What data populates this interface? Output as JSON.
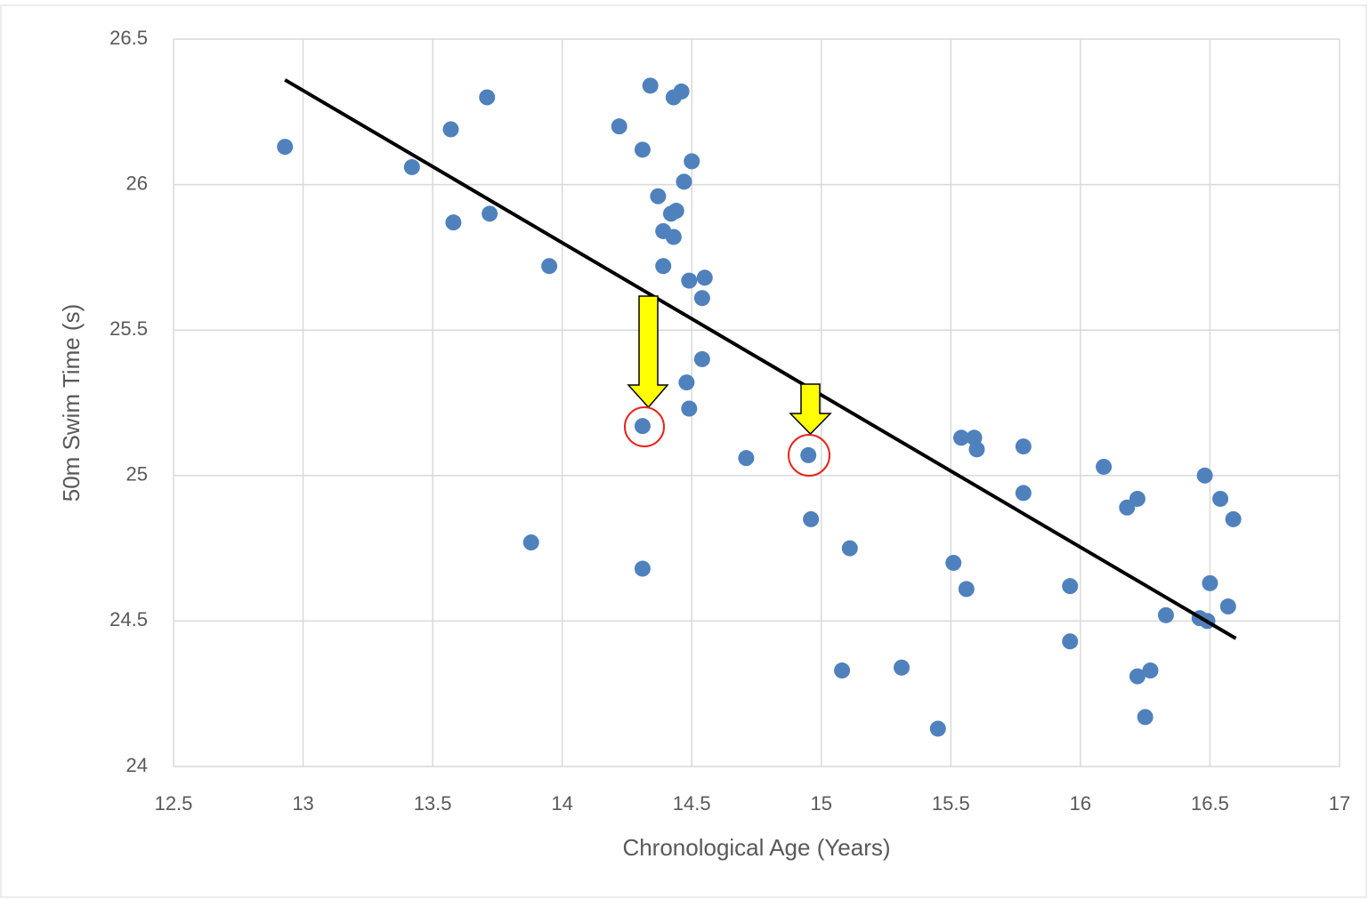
{
  "chart_data": {
    "type": "scatter",
    "x_label": "Chronological Age (Years)",
    "y_label": "50m Swim Time (s)",
    "color": "#4f81bd",
    "x": [
      12.93,
      13.42,
      13.57,
      13.58,
      13.71,
      13.72,
      13.95,
      13.88,
      14.22,
      14.34,
      14.43,
      14.46,
      14.31,
      14.5,
      14.47,
      14.37,
      14.42,
      14.44,
      14.39,
      14.43,
      14.39,
      14.49,
      14.55,
      14.54,
      14.54,
      14.48,
      14.49,
      14.31,
      14.31,
      14.71,
      14.95,
      14.96,
      15.11,
      15.08,
      15.31,
      15.45,
      15.51,
      15.56,
      15.54,
      15.59,
      15.6,
      15.78,
      15.78,
      15.96,
      15.96,
      16.09,
      16.18,
      16.22,
      16.22,
      16.27,
      16.25,
      16.33,
      16.46,
      16.49,
      16.48,
      16.54,
      16.59,
      16.5,
      16.57
    ],
    "values": [
      26.13,
      26.06,
      26.19,
      25.87,
      26.3,
      25.9,
      25.72,
      24.77,
      26.2,
      26.34,
      26.3,
      26.32,
      26.12,
      26.08,
      26.01,
      25.96,
      25.9,
      25.91,
      25.84,
      25.82,
      25.72,
      25.67,
      25.68,
      25.61,
      25.4,
      25.32,
      25.23,
      25.17,
      24.68,
      25.06,
      25.07,
      24.85,
      24.75,
      24.33,
      24.34,
      24.13,
      24.7,
      24.61,
      25.13,
      25.13,
      25.09,
      25.1,
      24.94,
      24.62,
      24.43,
      25.03,
      24.89,
      24.92,
      24.31,
      24.33,
      24.17,
      24.52,
      24.51,
      24.5,
      25.0,
      24.92,
      24.85,
      24.63,
      24.55
    ],
    "trendline": {
      "x": [
        12.93,
        16.6
      ],
      "values": [
        26.36,
        24.44
      ],
      "color": "#000000"
    },
    "xlim": [
      12.5,
      17
    ],
    "xticks": [
      12.5,
      13,
      13.5,
      14,
      14.5,
      15,
      15.5,
      16,
      16.5,
      17
    ],
    "ylim": [
      24,
      26.5
    ],
    "yticks": [
      24,
      24.5,
      25,
      25.5,
      26,
      26.5
    ],
    "grid": true
  }
}
